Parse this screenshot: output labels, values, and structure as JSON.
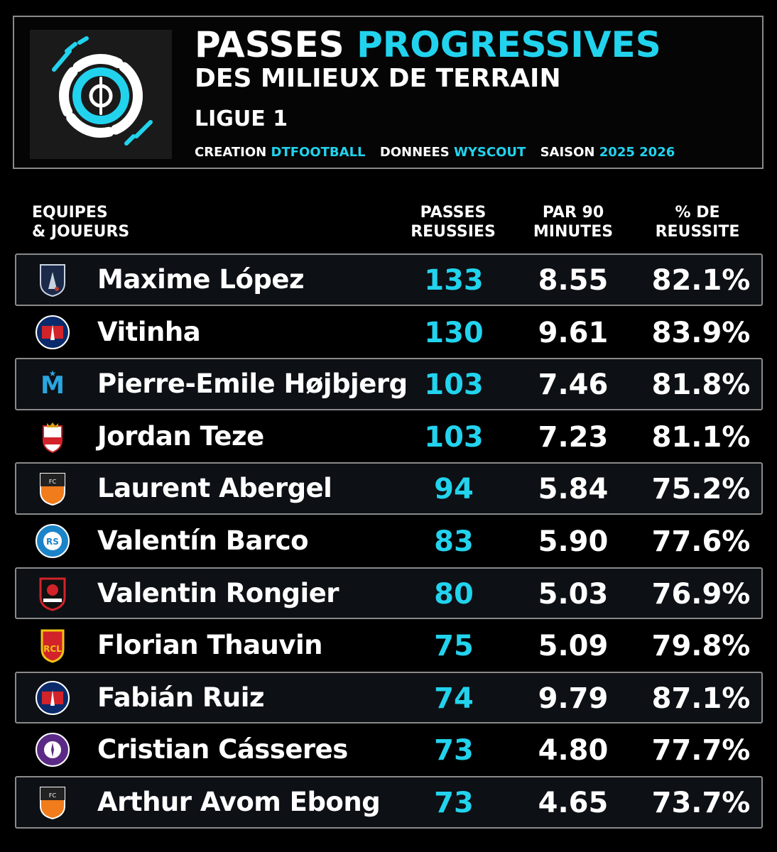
{
  "header": {
    "title_white": "PASSES",
    "title_accent": "PROGRESSIVES",
    "subtitle": "DES MILIEUX DE TERRAIN",
    "league": "LIGUE 1",
    "credits": {
      "creation_label": "CREATION",
      "creation_value": "DTFOOTBALL",
      "data_label": "DONNEES",
      "data_value": "WYSCOUT",
      "season_label": "SAISON",
      "season_value": "2025 2026"
    },
    "logo_icon": "dtfootball-logo-icon"
  },
  "columns": {
    "team_player_l1": "EQUIPES",
    "team_player_l2": "& JOUEURS",
    "passes_l1": "PASSES",
    "passes_l2": "REUSSIES",
    "per90_l1": "PAR 90",
    "per90_l2": "MINUTES",
    "pct_l1": "% DE",
    "pct_l2": "REUSSITE"
  },
  "colors": {
    "accent": "#22d3ee",
    "background": "#000000",
    "row_border": "#8a8a8a"
  },
  "rows": [
    {
      "player": "Maxime López",
      "passes": "133",
      "per90": "8.55",
      "pct": "82.1%",
      "crest": "paris-fc-crest-icon"
    },
    {
      "player": "Vitinha",
      "passes": "130",
      "per90": "9.61",
      "pct": "83.9%",
      "crest": "psg-crest-icon"
    },
    {
      "player": "Pierre-Emile Højbjerg",
      "passes": "103",
      "per90": "7.46",
      "pct": "81.8%",
      "crest": "marseille-crest-icon"
    },
    {
      "player": "Jordan Teze",
      "passes": "103",
      "per90": "7.23",
      "pct": "81.1%",
      "crest": "monaco-crest-icon"
    },
    {
      "player": "Laurent Abergel",
      "passes": "94",
      "per90": "5.84",
      "pct": "75.2%",
      "crest": "lorient-crest-icon"
    },
    {
      "player": "Valentín Barco",
      "passes": "83",
      "per90": "5.90",
      "pct": "77.6%",
      "crest": "strasbourg-crest-icon"
    },
    {
      "player": "Valentin Rongier",
      "passes": "80",
      "per90": "5.03",
      "pct": "76.9%",
      "crest": "rennes-crest-icon"
    },
    {
      "player": "Florian Thauvin",
      "passes": "75",
      "per90": "5.09",
      "pct": "79.8%",
      "crest": "lens-crest-icon"
    },
    {
      "player": "Fabián Ruiz",
      "passes": "74",
      "per90": "9.79",
      "pct": "87.1%",
      "crest": "psg-crest-icon"
    },
    {
      "player": "Cristian Cásseres",
      "passes": "73",
      "per90": "4.80",
      "pct": "77.7%",
      "crest": "toulouse-crest-icon"
    },
    {
      "player": "Arthur Avom Ebong",
      "passes": "73",
      "per90": "4.65",
      "pct": "73.7%",
      "crest": "lorient-crest-icon"
    }
  ]
}
